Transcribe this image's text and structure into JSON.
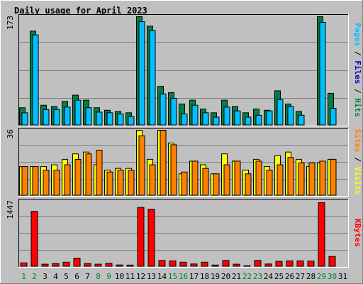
{
  "title": "Daily usage for April 2023",
  "colors": {
    "background": "#C0C0C0",
    "title": "#0000C0",
    "hits": "#008040",
    "files": "#00C0FF",
    "pages": "#00C0FF",
    "visits": "#FFFF00",
    "sites": "#FF8000",
    "kbytes": "#FF0000",
    "weekend_day": "#008040",
    "weekday": "#000000"
  },
  "labels": {
    "pages": "Pages",
    "files": "Files",
    "hits": "Hits",
    "sites": "Sites",
    "visits": "Visits",
    "kbytes": "KBytes",
    "sep": " / "
  },
  "chart_data": [
    {
      "type": "bar",
      "title": "Hits / Files / Pages",
      "ymax_label": "173",
      "ylim": [
        0,
        173
      ],
      "grid": true,
      "categories": [
        "1",
        "2",
        "3",
        "4",
        "5",
        "6",
        "7",
        "8",
        "9",
        "10",
        "11",
        "12",
        "13",
        "14",
        "15",
        "16",
        "17",
        "18",
        "19",
        "20",
        "21",
        "22",
        "23",
        "24",
        "25",
        "26",
        "27",
        "28",
        "29",
        "30",
        "31"
      ],
      "series": [
        {
          "name": "Hits",
          "values": [
            28,
            150,
            32,
            30,
            38,
            48,
            40,
            28,
            24,
            22,
            20,
            173,
            158,
            62,
            52,
            34,
            40,
            26,
            20,
            40,
            30,
            20,
            26,
            24,
            55,
            34,
            22,
            0,
            173,
            51,
            0
          ]
        },
        {
          "name": "Files",
          "values": [
            20,
            144,
            25,
            25,
            29,
            40,
            28,
            21,
            20,
            18,
            14,
            165,
            151,
            50,
            43,
            18,
            32,
            20,
            13,
            29,
            23,
            13,
            16,
            23,
            41,
            30,
            16,
            0,
            164,
            27,
            0
          ]
        }
      ]
    },
    {
      "type": "bar",
      "title": "Visits / Sites",
      "ymax_label": "36",
      "ylim": [
        0,
        36
      ],
      "grid": true,
      "categories": [
        "1",
        "2",
        "3",
        "4",
        "5",
        "6",
        "7",
        "8",
        "9",
        "10",
        "11",
        "12",
        "13",
        "14",
        "15",
        "16",
        "17",
        "18",
        "19",
        "20",
        "21",
        "22",
        "23",
        "24",
        "25",
        "26",
        "27",
        "28",
        "29",
        "30",
        "31"
      ],
      "series": [
        {
          "name": "Visits",
          "values": [
            16,
            16,
            16,
            17,
            20,
            23,
            24,
            17,
            14,
            15,
            15,
            36,
            20,
            36,
            29,
            12,
            19,
            17,
            12,
            23,
            19,
            14,
            20,
            16,
            22,
            24,
            20,
            16,
            18,
            20,
            0
          ]
        },
        {
          "name": "Sites",
          "values": [
            16,
            16,
            14,
            14,
            17,
            20,
            23,
            25,
            13,
            14,
            14,
            33,
            17,
            36,
            28,
            13,
            19,
            15,
            12,
            17,
            19,
            12,
            19,
            14,
            17,
            21,
            18,
            18,
            19,
            20,
            0
          ]
        }
      ]
    },
    {
      "type": "bar",
      "title": "KBytes",
      "ymax_label": "1447",
      "ylim": [
        0,
        1447
      ],
      "grid": true,
      "categories": [
        "1",
        "2",
        "3",
        "4",
        "5",
        "6",
        "7",
        "8",
        "9",
        "10",
        "11",
        "12",
        "13",
        "14",
        "15",
        "16",
        "17",
        "18",
        "19",
        "20",
        "21",
        "22",
        "23",
        "24",
        "25",
        "26",
        "27",
        "28",
        "29",
        "30",
        "31"
      ],
      "series": [
        {
          "name": "KBytes",
          "values": [
            85,
            1250,
            55,
            70,
            100,
            190,
            70,
            55,
            75,
            38,
            35,
            1340,
            1300,
            140,
            130,
            100,
            60,
            100,
            36,
            140,
            55,
            20,
            140,
            60,
            120,
            130,
            130,
            125,
            1447,
            230,
            0
          ]
        }
      ]
    }
  ]
}
